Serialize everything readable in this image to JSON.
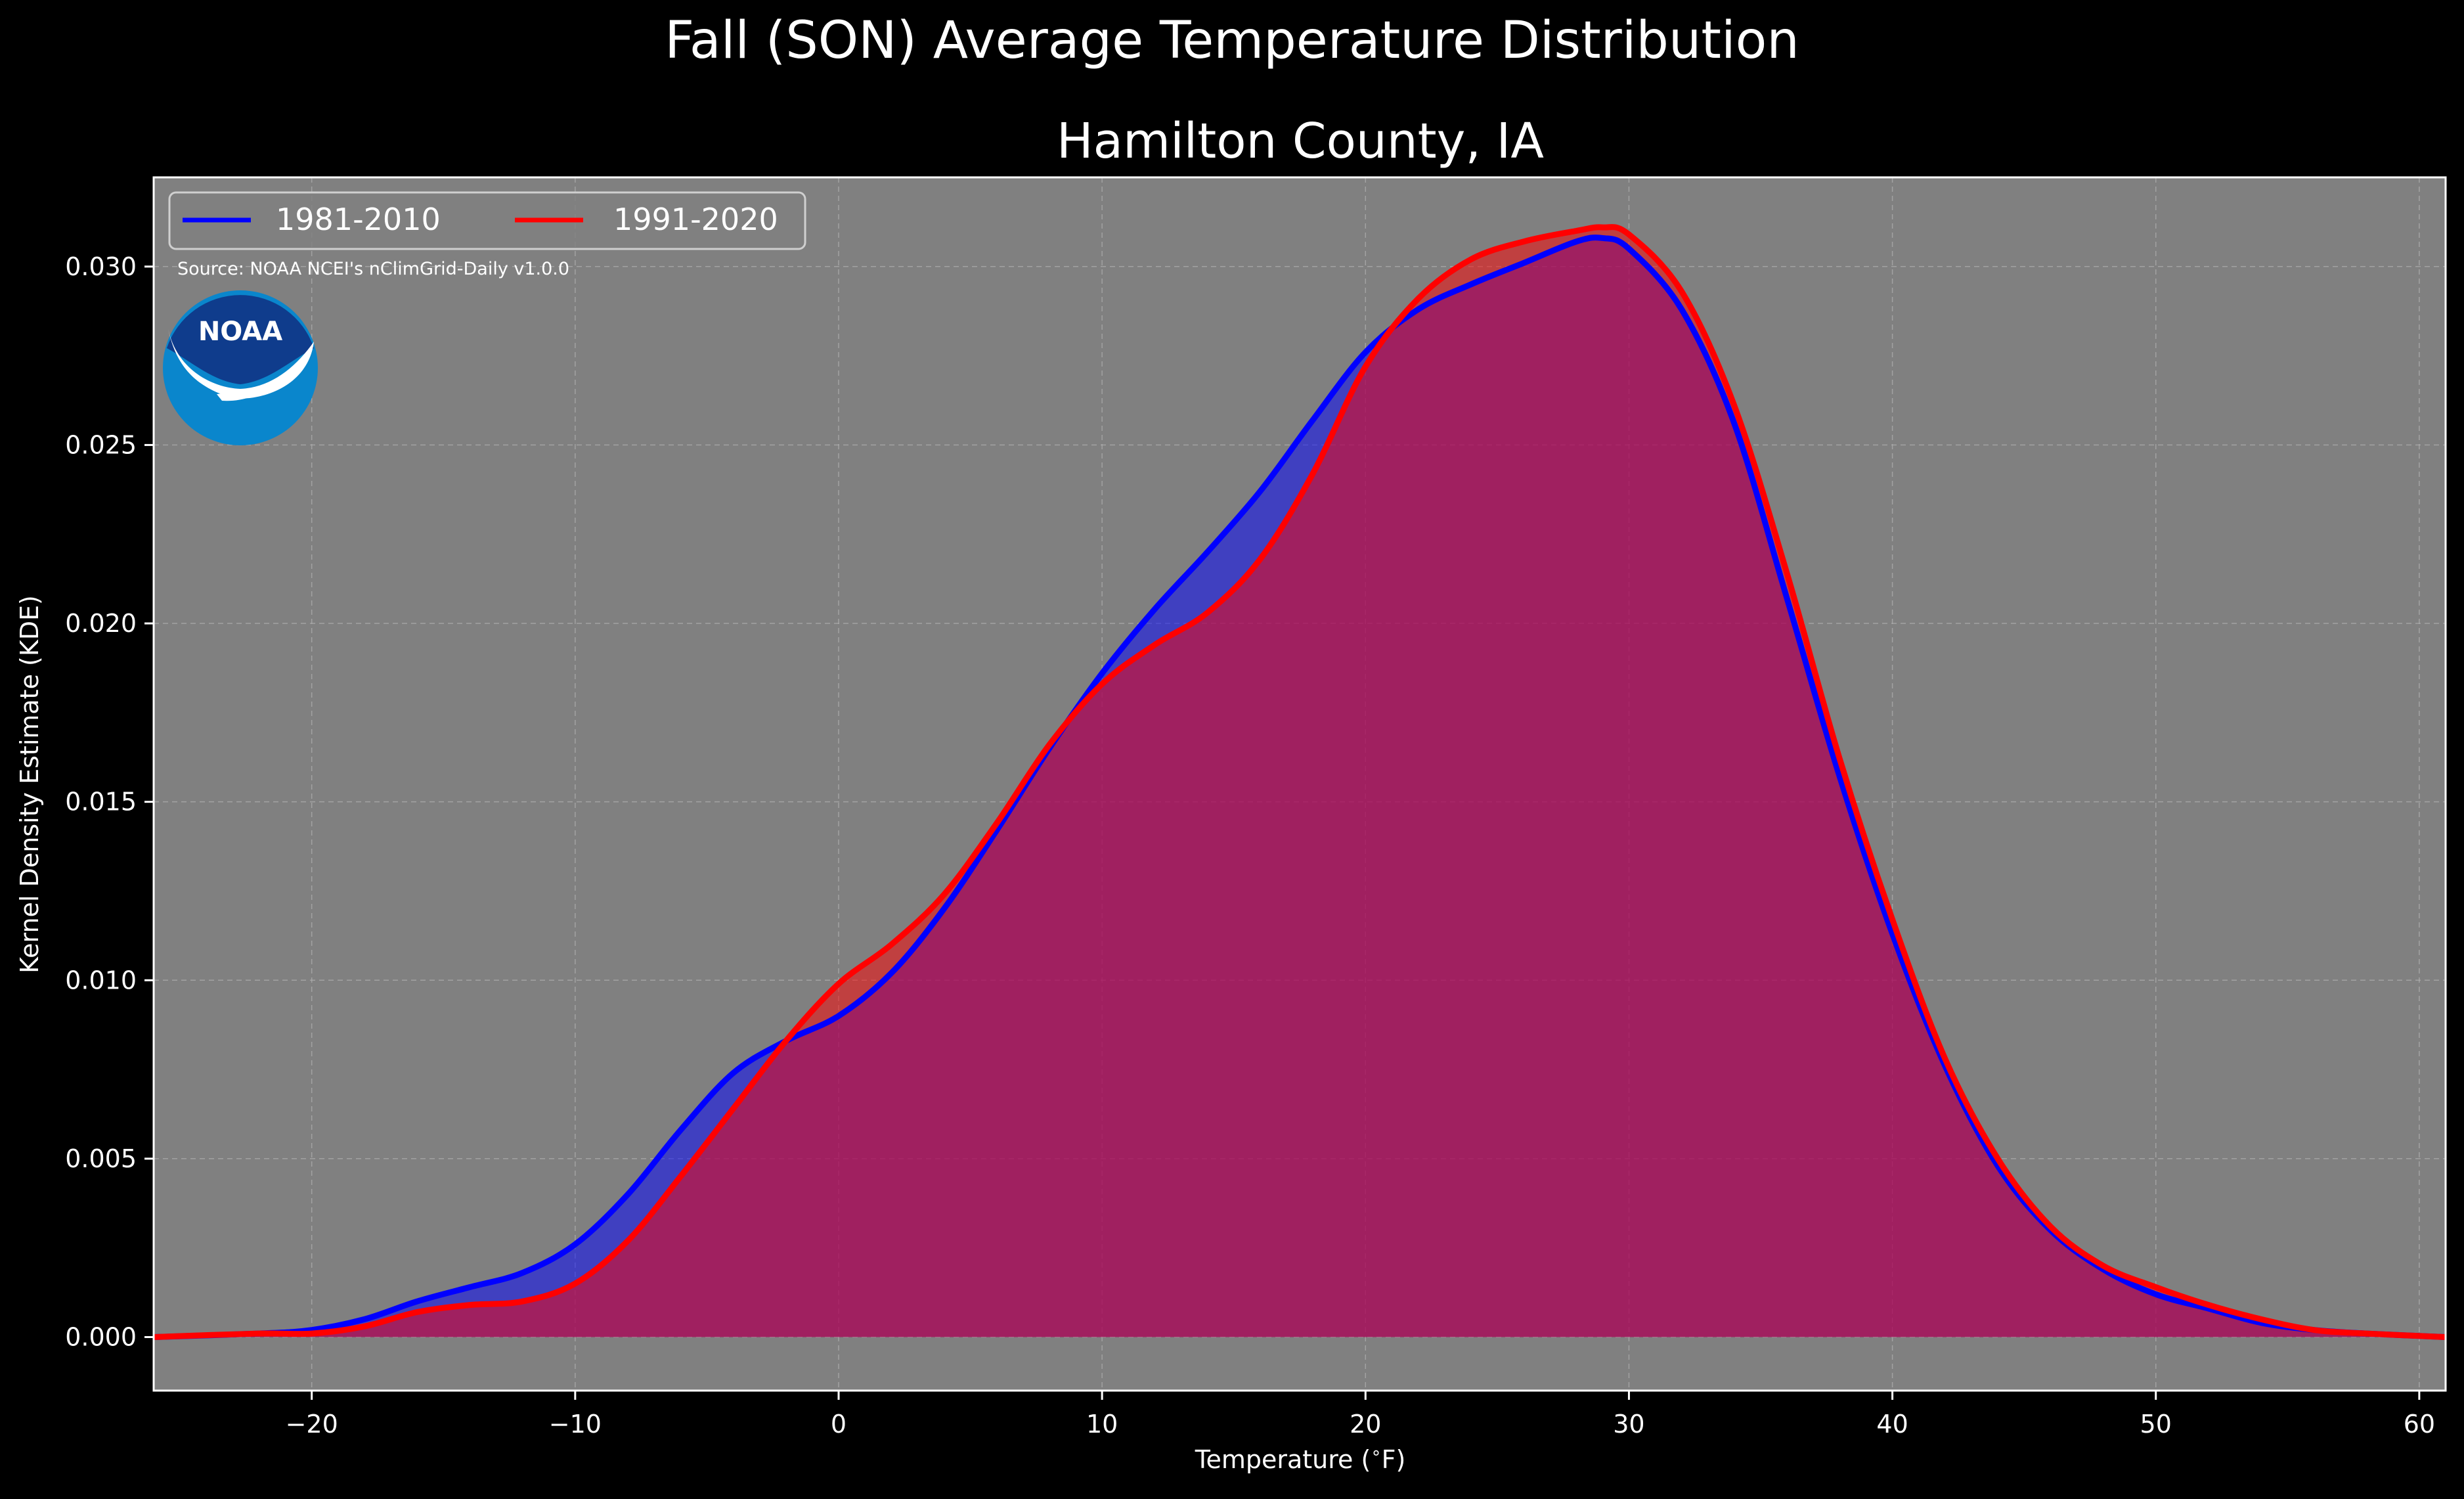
{
  "figure": {
    "suptitle": "Fall (SON) Average Temperature Distribution",
    "source_note": "Source: NOAA NCEI's nClimGrid-Daily v1.0.0",
    "logo_text": "NOAA",
    "colors": {
      "figure_background": "#000000",
      "plot_background": "#808080",
      "text": "#ffffff",
      "grid": "#b0b0b0"
    }
  },
  "chart_data": {
    "type": "area",
    "title": "Hamilton County, IA",
    "xlabel": "Temperature ($^\\circ$F)",
    "ylabel": "Kernel Density Estimate (KDE)",
    "xlim": [
      -26,
      61
    ],
    "ylim": [
      -0.0015,
      0.0325
    ],
    "xticks": [
      -20,
      -10,
      0,
      10,
      20,
      30,
      40,
      50,
      60
    ],
    "xtick_labels": [
      "−20",
      "−10",
      "0",
      "10",
      "20",
      "30",
      "40",
      "50",
      "60"
    ],
    "yticks": [
      0.0,
      0.005,
      0.01,
      0.015,
      0.02,
      0.025,
      0.03
    ],
    "ytick_labels": [
      "0.000",
      "0.005",
      "0.010",
      "0.015",
      "0.020",
      "0.025",
      "0.030"
    ],
    "grid": true,
    "legend": {
      "placement": "top-left",
      "columns": 2
    },
    "series": [
      {
        "name": "1981-2010",
        "color": "#0000ff",
        "fill_color": "#0000ff",
        "x": [
          -26,
          -22,
          -20,
          -18,
          -16,
          -14,
          -12,
          -10,
          -8,
          -6,
          -4,
          -2,
          0,
          2,
          4,
          6,
          8,
          10,
          12,
          14,
          16,
          18,
          20,
          22,
          24,
          26,
          28,
          29,
          30,
          32,
          34,
          36,
          38,
          40,
          42,
          44,
          46,
          48,
          50,
          52,
          54,
          56,
          58,
          61
        ],
        "y": [
          0.0,
          0.0001,
          0.0002,
          0.0005,
          0.001,
          0.0014,
          0.0018,
          0.0026,
          0.004,
          0.0058,
          0.0074,
          0.0083,
          0.009,
          0.0102,
          0.012,
          0.0142,
          0.0165,
          0.0186,
          0.0204,
          0.022,
          0.0237,
          0.0257,
          0.0276,
          0.0288,
          0.0295,
          0.0301,
          0.0307,
          0.0308,
          0.0305,
          0.0288,
          0.0256,
          0.0207,
          0.0157,
          0.0113,
          0.0076,
          0.0048,
          0.003,
          0.0019,
          0.0012,
          0.0008,
          0.0004,
          0.0002,
          0.0001,
          0.0
        ]
      },
      {
        "name": "1991-2020",
        "color": "#ff0000",
        "fill_color": "#ff0000",
        "x": [
          -26,
          -22,
          -20,
          -18,
          -16,
          -14,
          -12,
          -10,
          -8,
          -6,
          -4,
          -2,
          0,
          2,
          4,
          6,
          8,
          10,
          12,
          14,
          16,
          18,
          20,
          22,
          24,
          26,
          28,
          29,
          30,
          32,
          34,
          36,
          38,
          40,
          42,
          44,
          46,
          48,
          50,
          52,
          54,
          56,
          58,
          61
        ],
        "y": [
          0.0,
          0.0001,
          0.0001,
          0.0003,
          0.0007,
          0.0009,
          0.001,
          0.0015,
          0.0027,
          0.0045,
          0.0064,
          0.0083,
          0.0099,
          0.011,
          0.0124,
          0.0144,
          0.0166,
          0.0183,
          0.0194,
          0.0203,
          0.0218,
          0.0242,
          0.0272,
          0.0291,
          0.0302,
          0.0307,
          0.031,
          0.0311,
          0.0309,
          0.0293,
          0.0261,
          0.0214,
          0.0162,
          0.0117,
          0.0078,
          0.005,
          0.0031,
          0.002,
          0.0014,
          0.0009,
          0.0005,
          0.0002,
          0.0001,
          0.0
        ]
      }
    ]
  }
}
